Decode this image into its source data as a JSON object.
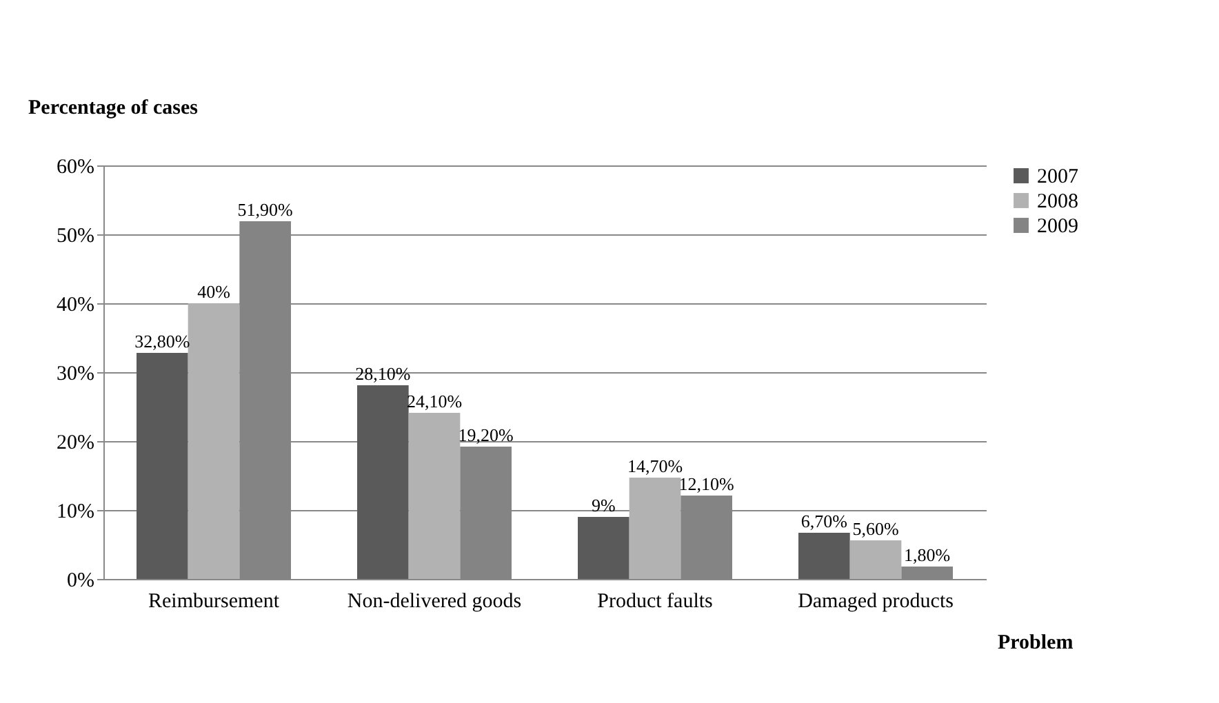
{
  "chart_data": {
    "type": "bar",
    "ylabel": "Percentage of cases",
    "xlabel": "Problem",
    "categories": [
      "Reimbursement",
      "Non-delivered goods",
      "Product faults",
      "Damaged products"
    ],
    "series": [
      {
        "name": "2007",
        "color": "#5a5a5a",
        "values": [
          32.8,
          28.1,
          9,
          6.7
        ],
        "value_labels": [
          "32,80%",
          "28,10%",
          "9%",
          "6,70%"
        ]
      },
      {
        "name": "2008",
        "color": "#b2b2b2",
        "values": [
          40,
          24.1,
          14.7,
          5.6
        ],
        "value_labels": [
          "40%",
          "24,10%",
          "14,70%",
          "5,60%"
        ]
      },
      {
        "name": "2009",
        "color": "#848484",
        "values": [
          51.9,
          19.2,
          12.1,
          1.8
        ],
        "value_labels": [
          "51,90%",
          "19,20%",
          "12,10%",
          "1,80%"
        ]
      }
    ],
    "ylim": [
      0,
      60
    ],
    "yticks": [
      {
        "value": 0,
        "label": "0%"
      },
      {
        "value": 10,
        "label": "10%"
      },
      {
        "value": 20,
        "label": "20%"
      },
      {
        "value": 30,
        "label": "30%"
      },
      {
        "value": 40,
        "label": "40%"
      },
      {
        "value": 50,
        "label": "50%"
      },
      {
        "value": 60,
        "label": "60%"
      }
    ],
    "grid": "y",
    "legend": "right"
  }
}
